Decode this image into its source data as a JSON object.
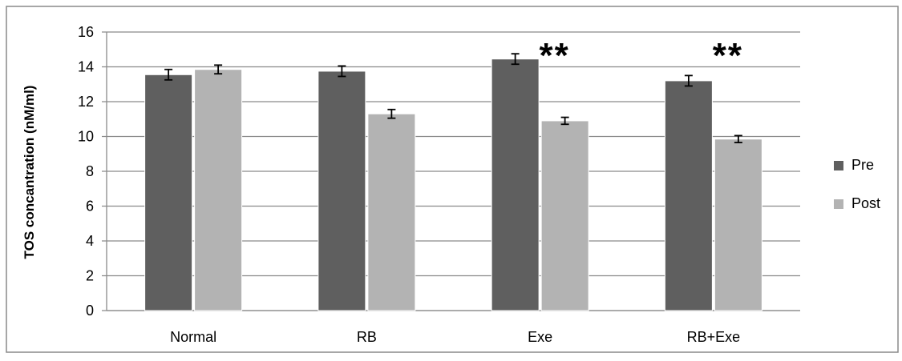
{
  "chart_data": {
    "type": "bar",
    "categories": [
      "Normal",
      "RB",
      "Exe",
      "RB+Exe"
    ],
    "series": [
      {
        "name": "Pre",
        "values": [
          13.55,
          13.75,
          14.45,
          13.2
        ],
        "errors": [
          0.3,
          0.3,
          0.3,
          0.3
        ],
        "color": "#5f5f5f"
      },
      {
        "name": "Post",
        "values": [
          13.85,
          11.3,
          10.9,
          9.85
        ],
        "errors": [
          0.25,
          0.25,
          0.2,
          0.2
        ],
        "color": "#b3b3b3"
      }
    ],
    "annotations": [
      {
        "category": "Exe",
        "text": "**"
      },
      {
        "category": "RB+Exe",
        "text": "**"
      }
    ],
    "ylabel": "TOS concantration (nM/ml)",
    "xlabel": "",
    "title": "",
    "ylim": [
      0,
      16
    ],
    "yticks": [
      0,
      2,
      4,
      6,
      8,
      10,
      12,
      14,
      16
    ],
    "grid": true,
    "legend": "right",
    "gridColor": "#8a8a8a",
    "frameColor": "#8a8a8a"
  }
}
